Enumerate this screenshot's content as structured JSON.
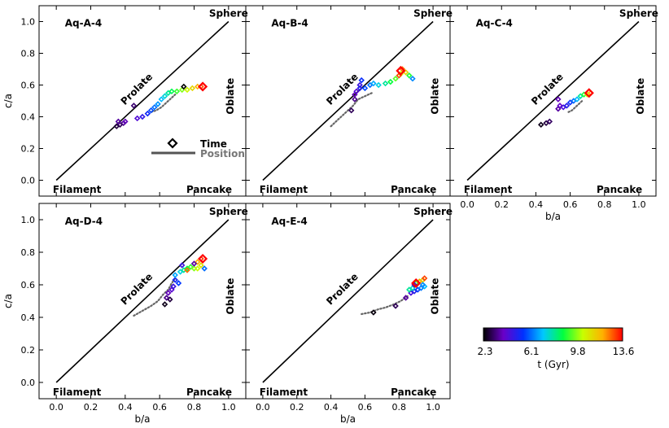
{
  "chart_data": {
    "type": "scatter",
    "axis": {
      "xlabel": "b/a",
      "ylabel": "c/a",
      "xlim": [
        -0.1,
        1.1
      ],
      "ylim": [
        -0.1,
        1.1
      ],
      "xticks": [
        "0.0",
        "0.2",
        "0.4",
        "0.6",
        "0.8",
        "1.0"
      ],
      "yticks": [
        "0.0",
        "0.2",
        "0.4",
        "0.6",
        "0.8",
        "1.0"
      ]
    },
    "region_labels": {
      "sphere": "Sphere",
      "prolate": "Prolate",
      "oblate": "Oblate",
      "filament": "Filament",
      "pancake": "Pancake"
    },
    "legend": {
      "time": "Time",
      "position": "Position"
    },
    "colorbar": {
      "label": "t (Gyr)",
      "ticks": [
        "2.3",
        "6.1",
        "9.8",
        "13.6"
      ],
      "range": [
        2.3,
        13.6
      ],
      "colors": [
        "#000000",
        "#6a00c8",
        "#0030ff",
        "#00c8ff",
        "#00ff40",
        "#c8ff00",
        "#ffb000",
        "#ff0000"
      ]
    },
    "panels": [
      {
        "title": "Aq-A-4",
        "position_track": [
          [
            0.55,
            0.43
          ],
          [
            0.58,
            0.44
          ],
          [
            0.61,
            0.46
          ],
          [
            0.64,
            0.49
          ],
          [
            0.67,
            0.52
          ],
          [
            0.69,
            0.54
          ]
        ],
        "points": [
          [
            0.35,
            0.34,
            2.8
          ],
          [
            0.37,
            0.35,
            3.0
          ],
          [
            0.39,
            0.36,
            3.4
          ],
          [
            0.36,
            0.37,
            3.6
          ],
          [
            0.4,
            0.37,
            3.8
          ],
          [
            0.47,
            0.39,
            4.3
          ],
          [
            0.5,
            0.4,
            4.8
          ],
          [
            0.53,
            0.42,
            5.3
          ],
          [
            0.55,
            0.44,
            5.8
          ],
          [
            0.57,
            0.46,
            6.2
          ],
          [
            0.59,
            0.48,
            6.6
          ],
          [
            0.61,
            0.51,
            7.0
          ],
          [
            0.63,
            0.53,
            7.5
          ],
          [
            0.65,
            0.55,
            8.0
          ],
          [
            0.67,
            0.56,
            8.6
          ],
          [
            0.7,
            0.56,
            9.2
          ],
          [
            0.73,
            0.57,
            9.8
          ],
          [
            0.76,
            0.57,
            10.5
          ],
          [
            0.79,
            0.58,
            11.2
          ],
          [
            0.82,
            0.59,
            12.0
          ],
          [
            0.84,
            0.59,
            12.8
          ],
          [
            0.45,
            0.47,
            3.2
          ],
          [
            0.74,
            0.59,
            2.3
          ]
        ],
        "marker_final": [
          0.85,
          0.59
        ]
      },
      {
        "title": "Aq-B-4",
        "position_track": [
          [
            0.4,
            0.34
          ],
          [
            0.44,
            0.38
          ],
          [
            0.49,
            0.43
          ],
          [
            0.53,
            0.47
          ],
          [
            0.56,
            0.51
          ],
          [
            0.6,
            0.53
          ],
          [
            0.64,
            0.55
          ]
        ],
        "points": [
          [
            0.52,
            0.44,
            3.0
          ],
          [
            0.54,
            0.51,
            3.4
          ],
          [
            0.54,
            0.54,
            3.8
          ],
          [
            0.55,
            0.56,
            4.2
          ],
          [
            0.57,
            0.6,
            4.6
          ],
          [
            0.57,
            0.58,
            5.0
          ],
          [
            0.58,
            0.63,
            5.4
          ],
          [
            0.6,
            0.58,
            5.8
          ],
          [
            0.63,
            0.6,
            6.2
          ],
          [
            0.65,
            0.61,
            6.8
          ],
          [
            0.68,
            0.6,
            7.4
          ],
          [
            0.72,
            0.61,
            8.0
          ],
          [
            0.75,
            0.62,
            8.8
          ],
          [
            0.78,
            0.64,
            9.5
          ],
          [
            0.81,
            0.67,
            10.5
          ],
          [
            0.84,
            0.68,
            11.3
          ],
          [
            0.88,
            0.64,
            6.5
          ],
          [
            0.86,
            0.66,
            9.0
          ],
          [
            0.82,
            0.7,
            12.5
          ],
          [
            0.8,
            0.66,
            13.0
          ]
        ],
        "marker_final": [
          0.81,
          0.69
        ]
      },
      {
        "title": "Aq-C-4",
        "position_track": [
          [
            0.59,
            0.43
          ],
          [
            0.61,
            0.44
          ],
          [
            0.63,
            0.46
          ],
          [
            0.65,
            0.48
          ],
          [
            0.67,
            0.5
          ]
        ],
        "points": [
          [
            0.43,
            0.35,
            2.5
          ],
          [
            0.46,
            0.36,
            2.8
          ],
          [
            0.48,
            0.37,
            3.1
          ],
          [
            0.53,
            0.45,
            3.6
          ],
          [
            0.54,
            0.47,
            4.0
          ],
          [
            0.56,
            0.46,
            4.4
          ],
          [
            0.58,
            0.47,
            4.9
          ],
          [
            0.6,
            0.49,
            5.4
          ],
          [
            0.53,
            0.51,
            3.8
          ],
          [
            0.62,
            0.5,
            6.2
          ],
          [
            0.64,
            0.51,
            7.0
          ],
          [
            0.66,
            0.53,
            8.0
          ],
          [
            0.68,
            0.54,
            9.0
          ],
          [
            0.7,
            0.54,
            10.5
          ],
          [
            0.72,
            0.55,
            12.0
          ]
        ],
        "marker_final": [
          0.71,
          0.55
        ]
      },
      {
        "title": "Aq-D-4",
        "position_track": [
          [
            0.45,
            0.41
          ],
          [
            0.5,
            0.44
          ],
          [
            0.55,
            0.47
          ],
          [
            0.59,
            0.5
          ],
          [
            0.62,
            0.54
          ],
          [
            0.65,
            0.57
          ],
          [
            0.67,
            0.61
          ],
          [
            0.69,
            0.64
          ]
        ],
        "points": [
          [
            0.63,
            0.48,
            2.5
          ],
          [
            0.66,
            0.51,
            2.8
          ],
          [
            0.64,
            0.52,
            3.4
          ],
          [
            0.65,
            0.55,
            3.8
          ],
          [
            0.67,
            0.57,
            4.2
          ],
          [
            0.68,
            0.59,
            4.6
          ],
          [
            0.69,
            0.63,
            5.2
          ],
          [
            0.71,
            0.61,
            5.6
          ],
          [
            0.69,
            0.66,
            6.8
          ],
          [
            0.72,
            0.68,
            7.4
          ],
          [
            0.74,
            0.69,
            8.0
          ],
          [
            0.76,
            0.7,
            8.6
          ],
          [
            0.78,
            0.71,
            9.2
          ],
          [
            0.8,
            0.7,
            9.8
          ],
          [
            0.82,
            0.7,
            10.4
          ],
          [
            0.84,
            0.72,
            11.0
          ],
          [
            0.82,
            0.74,
            12.0
          ],
          [
            0.84,
            0.76,
            13.0
          ],
          [
            0.86,
            0.7,
            6.2
          ],
          [
            0.8,
            0.73,
            3.6
          ],
          [
            0.76,
            0.69,
            12.6
          ],
          [
            0.73,
            0.72,
            4.6
          ]
        ],
        "marker_final": [
          0.85,
          0.76
        ]
      },
      {
        "title": "Aq-E-4",
        "position_track": [
          [
            0.58,
            0.42
          ],
          [
            0.63,
            0.43
          ],
          [
            0.68,
            0.45
          ],
          [
            0.72,
            0.46
          ],
          [
            0.77,
            0.48
          ],
          [
            0.81,
            0.5
          ],
          [
            0.85,
            0.53
          ]
        ],
        "points": [
          [
            0.65,
            0.43,
            2.4
          ],
          [
            0.78,
            0.47,
            3.0
          ],
          [
            0.84,
            0.52,
            3.6
          ],
          [
            0.87,
            0.55,
            4.4
          ],
          [
            0.89,
            0.56,
            5.0
          ],
          [
            0.91,
            0.57,
            5.6
          ],
          [
            0.93,
            0.58,
            6.3
          ],
          [
            0.95,
            0.59,
            7.0
          ],
          [
            0.88,
            0.58,
            7.6
          ],
          [
            0.86,
            0.57,
            8.0
          ],
          [
            0.9,
            0.61,
            9.0
          ],
          [
            0.92,
            0.62,
            10.0
          ],
          [
            0.94,
            0.63,
            11.0
          ],
          [
            0.92,
            0.62,
            12.0
          ],
          [
            0.95,
            0.64,
            13.0
          ],
          [
            0.89,
            0.6,
            3.8
          ],
          [
            0.94,
            0.6,
            6.5
          ]
        ],
        "marker_final": [
          0.9,
          0.61
        ]
      }
    ]
  }
}
